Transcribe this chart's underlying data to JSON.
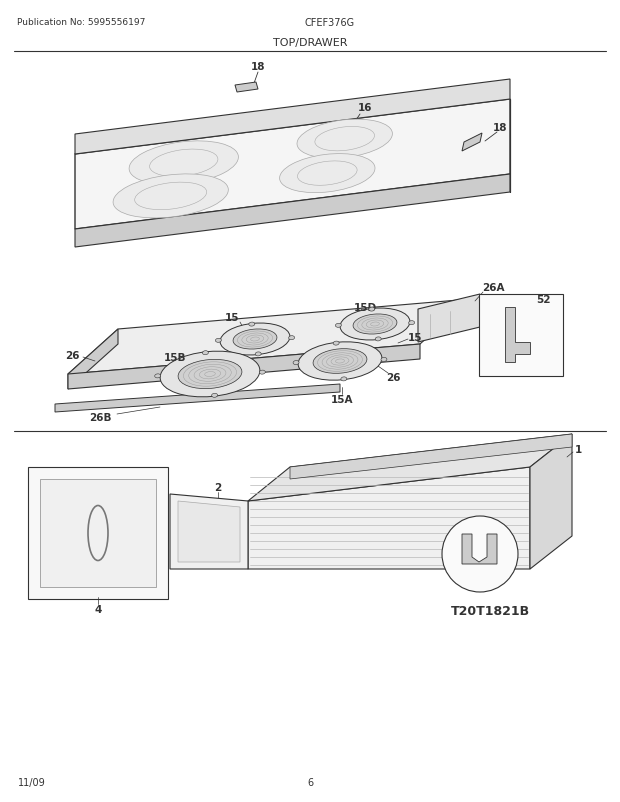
{
  "title": "TOP/DRAWER",
  "pub_no": "Publication No: 5995556197",
  "model": "CFEF376G",
  "diagram_id": "T20T1821B",
  "date": "11/09",
  "page": "6",
  "bg_color": "#ffffff",
  "line_color": "#333333",
  "gray1": "#f2f2f2",
  "gray2": "#e0e0e0",
  "gray3": "#cccccc",
  "gray4": "#b0b0b0",
  "gray5": "#888888"
}
